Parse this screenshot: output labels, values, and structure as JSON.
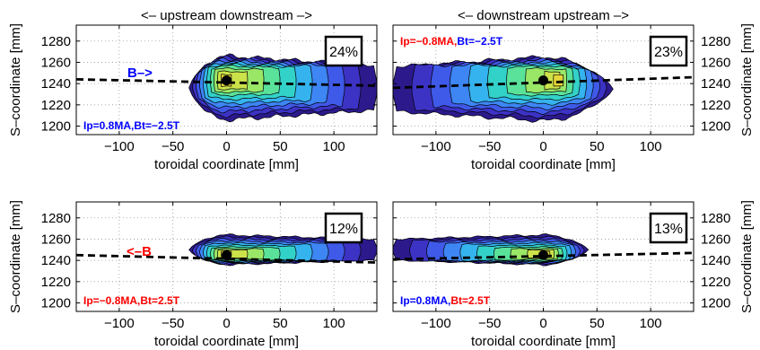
{
  "colors": {
    "contour_levels": [
      "#2c1a8c",
      "#3c32c4",
      "#3f59e8",
      "#3d86f4",
      "#35b3ee",
      "#33d2c9",
      "#5ae29a",
      "#9ae767",
      "#cce24a",
      "#e6d63a"
    ],
    "red_label": "#ff0000",
    "blue_label": "#0000ff"
  },
  "chart_data": [
    {
      "type": "contour",
      "panel": "top-left",
      "title": "<– upstream  downstream –>",
      "xlabel": "toroidal coordinate [mm]",
      "ylabel": "S–coordinate [mm]",
      "xticks": [
        -100,
        -50,
        0,
        50,
        100
      ],
      "yticks": [
        1200,
        1220,
        1240,
        1260,
        1280
      ],
      "xlim": [
        -140,
        140
      ],
      "ylim": [
        1192,
        1295
      ],
      "y_axis_side": "left",
      "grid": true,
      "fraction_label": "24%",
      "annotation": {
        "parts": [
          {
            "text": "Ip=0.8MA,",
            "color": "#0000ff"
          },
          {
            "text": "Bt=−2.5T",
            "color": "#0000ff"
          }
        ]
      },
      "field_label": {
        "text": "B–>",
        "color": "#0000ff"
      },
      "peak": {
        "x": 0,
        "y": 1243
      },
      "dashed_line": {
        "x": [
          -140,
          140
        ],
        "y": [
          1244,
          1238
        ]
      },
      "blob": {
        "x_start": -35,
        "x_end": 140,
        "y_center": 1236,
        "half_width_max": 30,
        "peak_x": 0,
        "core_y": 1243
      }
    },
    {
      "type": "contour",
      "panel": "top-right",
      "title": "<– downstream upstream –>",
      "xlabel": "toroidal coordinate [mm]",
      "ylabel": "S–coordinate [mm]",
      "xticks": [
        -100,
        -50,
        0,
        50,
        100
      ],
      "yticks": [
        1200,
        1220,
        1240,
        1260,
        1280
      ],
      "xlim": [
        -140,
        140
      ],
      "ylim": [
        1192,
        1295
      ],
      "y_axis_side": "right",
      "grid": true,
      "fraction_label": "23%",
      "annotation": {
        "parts": [
          {
            "text": "Ip=−0.8MA,",
            "color": "#ff0000"
          },
          {
            "text": "Bt=−2.5T",
            "color": "#0000ff"
          }
        ]
      },
      "field_label": null,
      "peak": {
        "x": 0,
        "y": 1243
      },
      "dashed_line": {
        "x": [
          -140,
          140
        ],
        "y": [
          1236,
          1246
        ]
      },
      "blob": {
        "x_start": 65,
        "x_end": -140,
        "y_center": 1235,
        "half_width_max": 30,
        "peak_x": 0,
        "core_y": 1243
      }
    },
    {
      "type": "contour",
      "panel": "bottom-left",
      "title": "",
      "xlabel": "toroidal coordinate [mm]",
      "ylabel": "S–coordinate [mm]",
      "xticks": [
        -100,
        -50,
        0,
        50,
        100
      ],
      "yticks": [
        1200,
        1220,
        1240,
        1260,
        1280
      ],
      "xlim": [
        -140,
        140
      ],
      "ylim": [
        1192,
        1295
      ],
      "y_axis_side": "left",
      "grid": true,
      "fraction_label": "12%",
      "annotation": {
        "parts": [
          {
            "text": "Ip=−0.8MA,",
            "color": "#ff0000"
          },
          {
            "text": "Bt=2.5T",
            "color": "#ff0000"
          }
        ]
      },
      "field_label": {
        "text": "<–B",
        "color": "#ff0000"
      },
      "peak": {
        "x": 0,
        "y": 1245
      },
      "dashed_line": {
        "x": [
          -140,
          140
        ],
        "y": [
          1245,
          1238
        ]
      },
      "blob": {
        "x_start": -35,
        "x_end": 140,
        "y_center": 1250,
        "half_width_max": 14,
        "peak_x": 0,
        "core_y": 1246
      }
    },
    {
      "type": "contour",
      "panel": "bottom-right",
      "title": "",
      "xlabel": "toroidal coordinate [mm]",
      "ylabel": "S–coordinate [mm]",
      "xticks": [
        -100,
        -50,
        0,
        50,
        100
      ],
      "yticks": [
        1200,
        1220,
        1240,
        1260,
        1280
      ],
      "xlim": [
        -140,
        140
      ],
      "ylim": [
        1192,
        1295
      ],
      "y_axis_side": "right",
      "grid": true,
      "fraction_label": "13%",
      "annotation": {
        "parts": [
          {
            "text": "Ip=0.8MA,",
            "color": "#0000ff"
          },
          {
            "text": "Bt=2.5T",
            "color": "#ff0000"
          }
        ]
      },
      "field_label": null,
      "peak": {
        "x": 0,
        "y": 1245
      },
      "dashed_line": {
        "x": [
          -140,
          140
        ],
        "y": [
          1241,
          1247
        ]
      },
      "blob": {
        "x_start": 42,
        "x_end": -140,
        "y_center": 1250,
        "half_width_max": 14,
        "peak_x": 0,
        "core_y": 1246
      }
    }
  ]
}
